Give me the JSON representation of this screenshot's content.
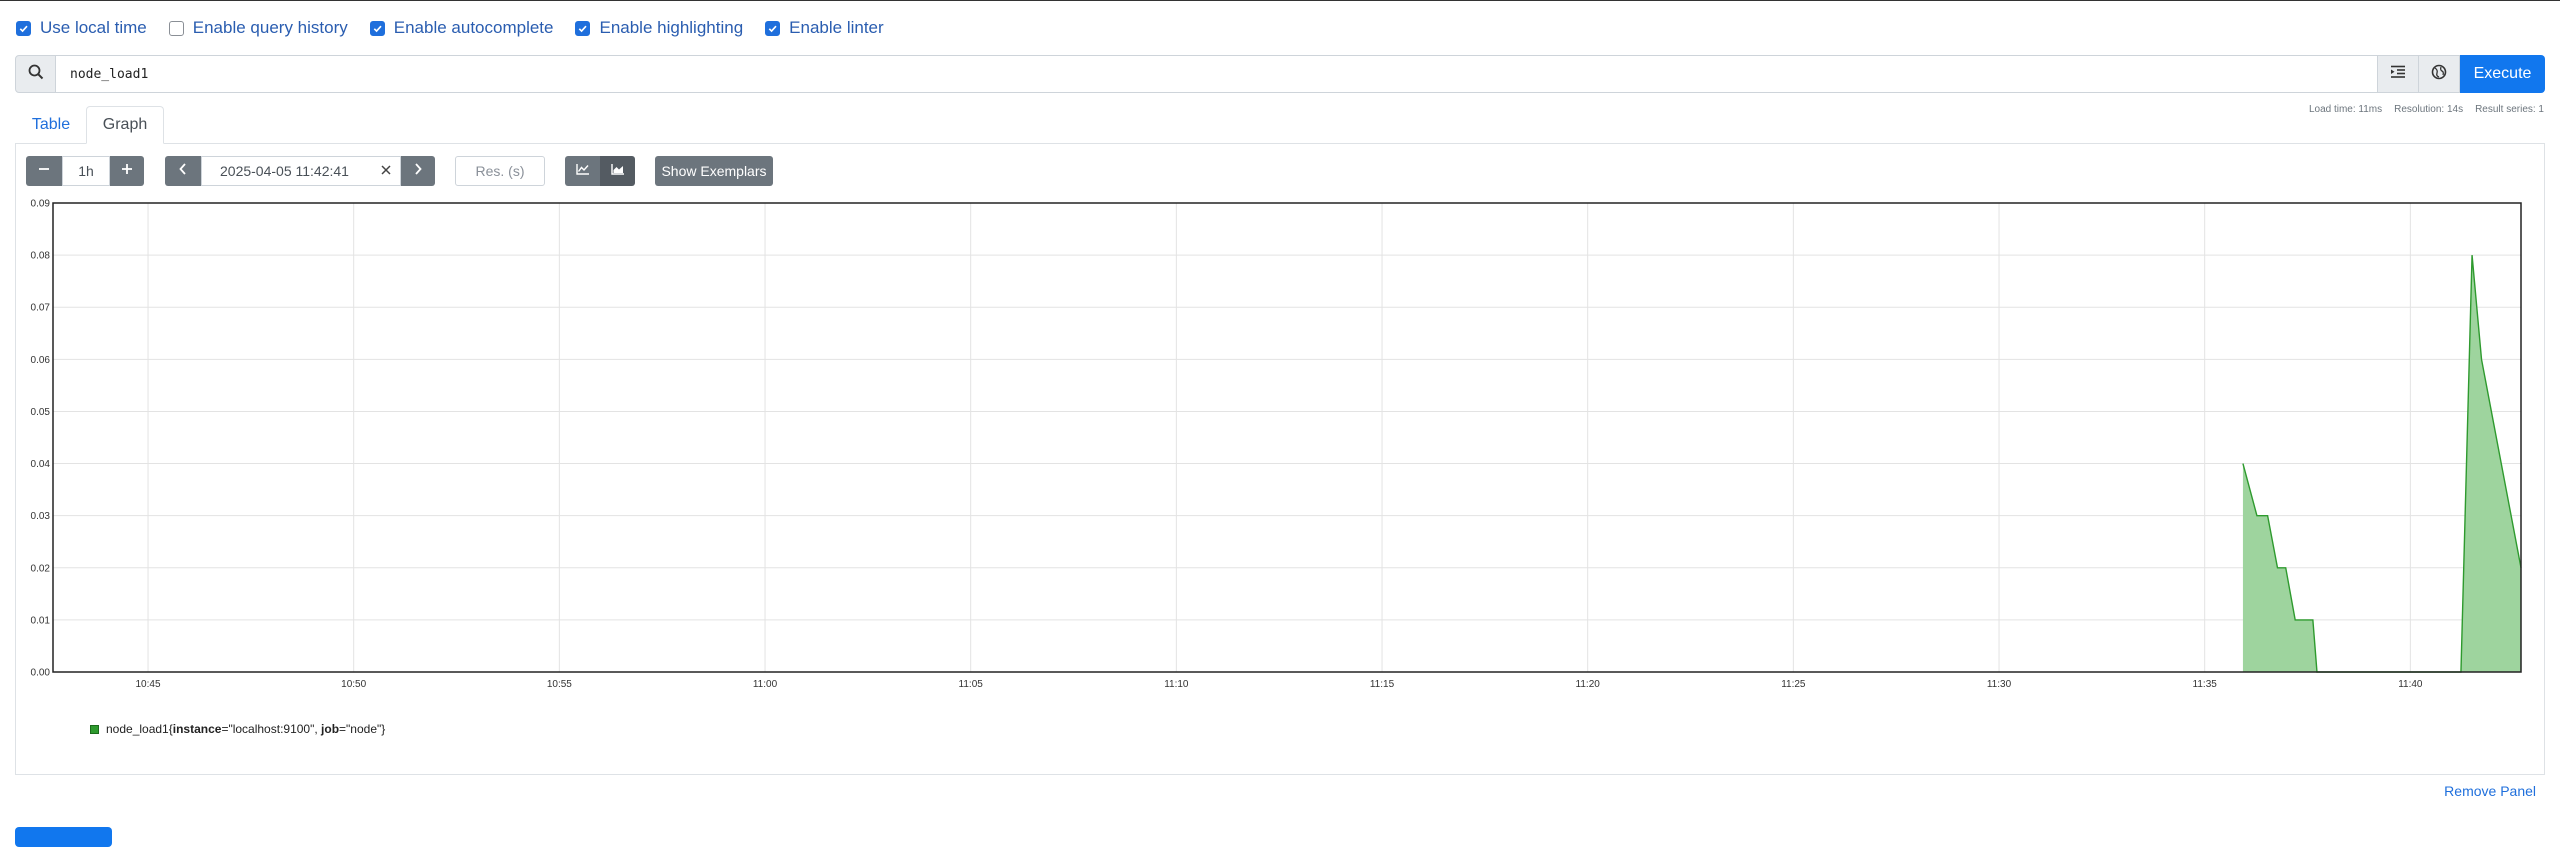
{
  "options": [
    {
      "label": "Use local time",
      "checked": true
    },
    {
      "label": "Enable query history",
      "checked": false
    },
    {
      "label": "Enable autocomplete",
      "checked": true
    },
    {
      "label": "Enable highlighting",
      "checked": true
    },
    {
      "label": "Enable linter",
      "checked": true
    }
  ],
  "expression": {
    "value": "node_load1",
    "execute_label": "Execute",
    "search_icon": "search-icon",
    "format_icon": "format-indent-icon",
    "metrics_icon": "globe-icon"
  },
  "stats": {
    "load_time": "Load time: 11ms",
    "resolution": "Resolution: 14s",
    "result_series": "Result series: 1"
  },
  "tabs": [
    {
      "label": "Table",
      "active": false
    },
    {
      "label": "Graph",
      "active": true
    }
  ],
  "graph_controls": {
    "range": "1h",
    "end_time": "2025-04-05 11:42:41",
    "resolution_placeholder": "Res. (s)",
    "show_exemplars_label": "Show Exemplars"
  },
  "chart_data": {
    "type": "area",
    "y_ticks": [
      "0.00",
      "0.01",
      "0.02",
      "0.03",
      "0.04",
      "0.05",
      "0.06",
      "0.07",
      "0.08",
      "0.09"
    ],
    "x_ticks": [
      "10:45",
      "10:50",
      "10:55",
      "11:00",
      "11:05",
      "11:10",
      "11:15",
      "11:20",
      "11:25",
      "11:30",
      "11:35",
      "11:40"
    ],
    "ylim": [
      0,
      0.09
    ],
    "x_range_minutes": [
      42.69,
      102.69
    ],
    "grid": true,
    "series": [
      {
        "name": "node_load1{instance=\"localhost:9100\", job=\"node\"}",
        "color": "#2e9a2e",
        "fill": "#9ed49e",
        "points": [
          [
            95.93,
            0.04
          ],
          [
            96.27,
            0.03
          ],
          [
            96.53,
            0.03
          ],
          [
            96.77,
            0.02
          ],
          [
            96.97,
            0.02
          ],
          [
            97.2,
            0.01
          ],
          [
            97.63,
            0.01
          ],
          [
            97.73,
            0.0
          ],
          [
            101.23,
            0.0
          ],
          [
            101.5,
            0.08
          ],
          [
            101.73,
            0.06
          ],
          [
            102.69,
            0.02
          ]
        ]
      }
    ]
  },
  "legend": {
    "metric": "node_load1",
    "open": "{",
    "l1_key": "instance",
    "l1_val": "=\"localhost:9100\", ",
    "l2_key": "job",
    "l2_val": "=\"node\"",
    "close": "}"
  },
  "remove_panel_label": "Remove Panel"
}
